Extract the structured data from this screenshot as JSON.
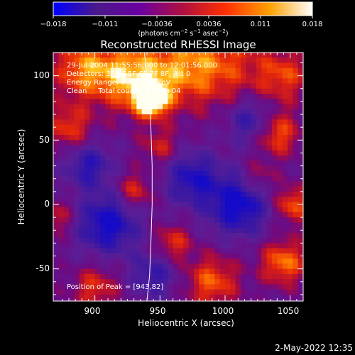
{
  "chart_data": {
    "type": "heatmap",
    "title": "Reconstructed RHESSI Image",
    "xlabel": "Heliocentric X (arcsec)",
    "ylabel": "Heliocentric Y (arcsec)",
    "xlim": [
      868,
      1060
    ],
    "ylim": [
      -75,
      118
    ],
    "x_ticks": [
      900,
      950,
      1000,
      1050
    ],
    "y_ticks": [
      -50,
      0,
      50,
      100
    ],
    "colorbar": {
      "ticks": [
        "−0.018",
        "−0.011",
        "−0.0036",
        "0.0036",
        "0.011",
        "0.018"
      ],
      "unit_label": "(photons cm",
      "unit_sup1": "−2",
      "unit_mid": " s",
      "unit_sup2": "−1",
      "unit_mid2": " asec",
      "unit_sup3": "−2",
      "unit_end": ")",
      "colors": [
        "#0000ff",
        "#4a1a8a",
        "#6a00a0",
        "#b01040",
        "#ff3000",
        "#ffa000",
        "#ffffff"
      ]
    },
    "annotations": {
      "time_range": "29-Jul-2004 11:55:56.000 to 12:01:56.000",
      "detectors": "Detectors: 3F 4F 5F 6F 7F 8F, Att 0",
      "energy_range": "Energy Range: 6.0 - 12.0 keV",
      "algorithm": "Clean     Total counts: 1.59E+04",
      "peak": "Position of Peak = [943,82]"
    },
    "peak": {
      "x": 943,
      "y": 82
    },
    "limb": [
      [
        938,
        118
      ],
      [
        940,
        100
      ],
      [
        942,
        80
      ],
      [
        943,
        60
      ],
      [
        944,
        30
      ],
      [
        944,
        0
      ],
      [
        943,
        -30
      ],
      [
        942,
        -55
      ],
      [
        940,
        -75
      ]
    ],
    "grid": false,
    "legend": "none"
  },
  "footer": {
    "timestamp": "2-May-2022 12:35"
  }
}
